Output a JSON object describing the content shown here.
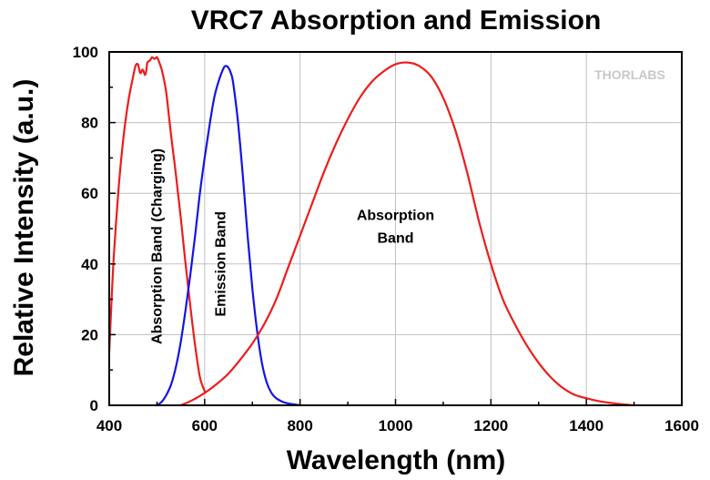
{
  "logo": "THORLABS",
  "chart_data": {
    "type": "line",
    "title": "VRC7 Absorption and Emission",
    "xlabel": "Wavelength (nm)",
    "ylabel": "Relative Intensity (a.u.)",
    "xlim": [
      400,
      1600
    ],
    "ylim": [
      0,
      100
    ],
    "xticks": [
      400,
      600,
      800,
      1000,
      1200,
      1400,
      1600
    ],
    "yticks": [
      0,
      20,
      40,
      60,
      80,
      100
    ],
    "grid": true,
    "series": [
      {
        "color": "#ee1c1c",
        "x": [
          400,
          405,
          410,
          420,
          430,
          440,
          450,
          455,
          460,
          465,
          470,
          475,
          478,
          480,
          485,
          490,
          495,
          500,
          505,
          510,
          515,
          520,
          525,
          530,
          540,
          550,
          560,
          570,
          580,
          590,
          600
        ],
        "y": [
          15,
          30,
          43,
          62,
          76,
          86,
          93,
          96,
          96.5,
          94,
          95,
          93.5,
          95,
          97,
          97.5,
          98.5,
          98,
          98.5,
          97,
          95,
          92,
          88,
          82,
          76,
          65,
          53,
          40,
          28,
          17,
          8,
          4
        ]
      },
      {
        "color": "#1414e6",
        "x": [
          500,
          510,
          520,
          530,
          540,
          550,
          560,
          570,
          580,
          590,
          600,
          610,
          620,
          630,
          640,
          645,
          650,
          655,
          660,
          670,
          680,
          690,
          700,
          710,
          720,
          730,
          740,
          750,
          760,
          770,
          780,
          790,
          800
        ],
        "y": [
          0,
          1,
          3,
          6,
          11,
          18,
          27,
          37,
          48,
          60,
          70,
          79,
          87,
          92,
          95.5,
          96,
          95.5,
          94,
          91,
          80,
          65,
          48,
          33,
          21,
          12,
          6.5,
          3.5,
          2,
          1.2,
          0.7,
          0.4,
          0.2,
          0
        ]
      },
      {
        "color": "#ee1c1c",
        "x": [
          550,
          575,
          600,
          625,
          650,
          675,
          700,
          725,
          750,
          775,
          800,
          825,
          850,
          875,
          900,
          925,
          950,
          975,
          1000,
          1025,
          1050,
          1075,
          1100,
          1125,
          1150,
          1175,
          1200,
          1225,
          1250,
          1275,
          1300,
          1325,
          1350,
          1375,
          1400,
          1425,
          1450,
          1475,
          1500
        ],
        "y": [
          0,
          1.5,
          3.5,
          6,
          9,
          13,
          17.5,
          23,
          30,
          39,
          48,
          57,
          66,
          74,
          81,
          87,
          91.5,
          94.5,
          96.5,
          97,
          96,
          93,
          87,
          78,
          66,
          52,
          40,
          30,
          23,
          17,
          12,
          8,
          5,
          3,
          2,
          1.2,
          0.7,
          0.3,
          0
        ]
      }
    ],
    "annotations": [
      {
        "text": "Absorption Band (Charging)",
        "x": 510,
        "y": 45,
        "rotate": -90
      },
      {
        "text": "Emission Band",
        "x": 643,
        "y": 40,
        "rotate": -90
      },
      {
        "text": "Absorption",
        "x": 1000,
        "y": 52.5
      },
      {
        "text": "Band",
        "x": 1000,
        "y": 46
      }
    ]
  }
}
